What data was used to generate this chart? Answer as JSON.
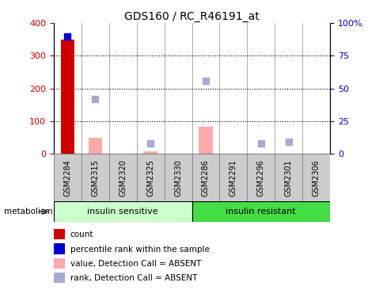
{
  "title": "GDS160 / RC_R46191_at",
  "samples": [
    "GSM2284",
    "GSM2315",
    "GSM2320",
    "GSM2325",
    "GSM2330",
    "GSM2286",
    "GSM2291",
    "GSM2296",
    "GSM2301",
    "GSM2306"
  ],
  "count_values": [
    350,
    0,
    0,
    0,
    0,
    0,
    0,
    0,
    0,
    0
  ],
  "rank_values_pct": [
    90,
    0,
    0,
    0,
    0,
    0,
    0,
    0,
    0,
    0
  ],
  "absent_value_bars": [
    0,
    48,
    0,
    8,
    0,
    82,
    0,
    0,
    0,
    0
  ],
  "absent_rank_dots_pct": [
    0,
    42,
    0,
    8,
    0,
    56,
    0,
    8,
    9,
    0
  ],
  "ylim_left": [
    0,
    400
  ],
  "ylim_right": [
    0,
    100
  ],
  "yticks_left": [
    0,
    100,
    200,
    300,
    400
  ],
  "yticks_right": [
    0,
    25,
    50,
    75,
    100
  ],
  "ytick_labels_right": [
    "0",
    "25",
    "50",
    "75",
    "100%"
  ],
  "color_count": "#cc0000",
  "color_rank": "#0000cc",
  "color_absent_value": "#ffaaaa",
  "color_absent_rank": "#aaaacc",
  "group1_label": "insulin sensitive",
  "group2_label": "insulin resistant",
  "group1_color": "#ccffcc",
  "group2_color": "#44dd44",
  "group1_indices": [
    0,
    1,
    2,
    3,
    4
  ],
  "group2_indices": [
    5,
    6,
    7,
    8,
    9
  ],
  "factor_label": "metabolism",
  "legend_items": [
    {
      "label": "count",
      "color": "#cc0000"
    },
    {
      "label": "percentile rank within the sample",
      "color": "#0000cc"
    },
    {
      "label": "value, Detection Call = ABSENT",
      "color": "#ffaaaa"
    },
    {
      "label": "rank, Detection Call = ABSENT",
      "color": "#aaaacc"
    }
  ],
  "bar_width": 0.5,
  "dot_size": 30,
  "bg_color": "#ffffff",
  "tick_label_color_left": "#cc0000",
  "tick_label_color_right": "#0000cc",
  "sample_box_color": "#cccccc",
  "sample_box_edge": "#888888"
}
